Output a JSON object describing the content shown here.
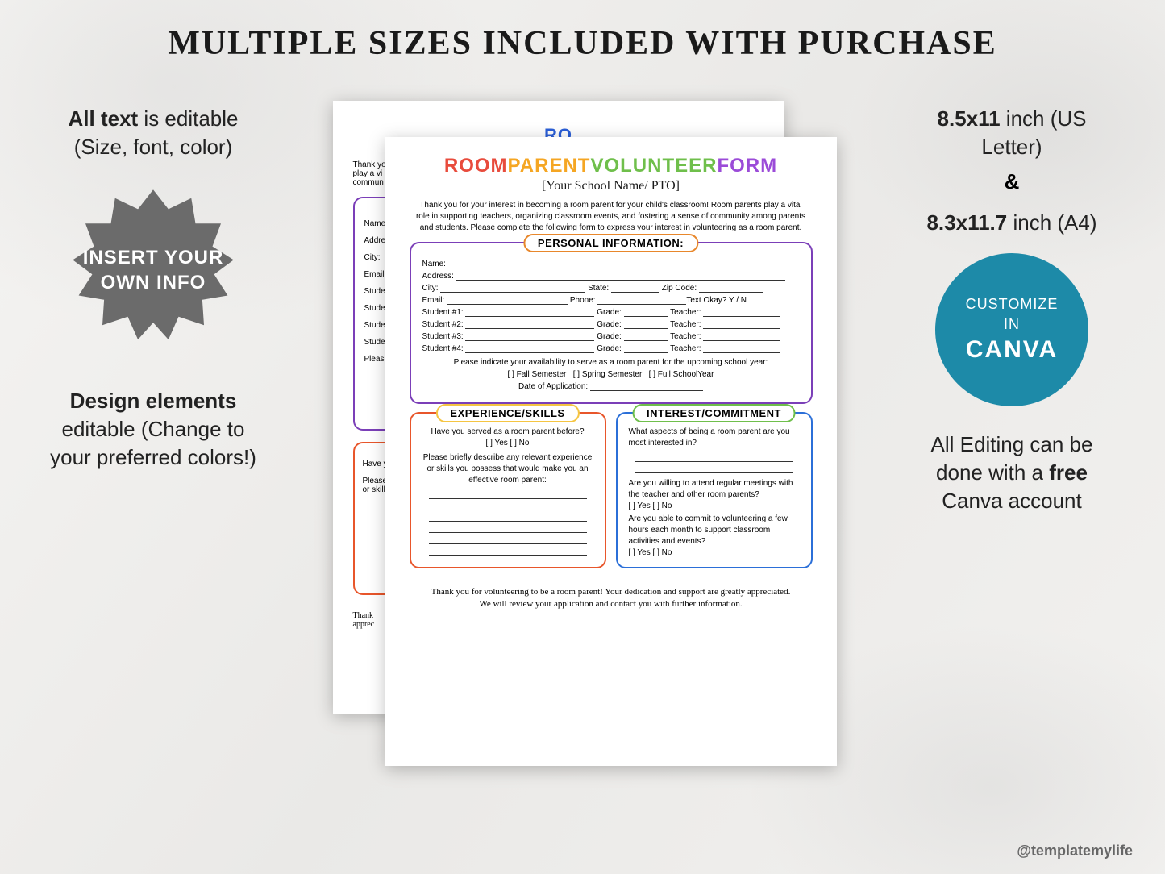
{
  "title": "MULTIPLE SIZES INCLUDED WITH PURCHASE",
  "left": {
    "feature1_b": "All text",
    "feature1_rest": " is editable (Size, font, color)",
    "burst_l1": "INSERT YOUR",
    "burst_l2": "OWN INFO",
    "feature2_b": "Design elements",
    "feature2_rest": " editable (Change to your preferred colors!)"
  },
  "right": {
    "size1_b": "8.5x11",
    "size1_rest": " inch (US Letter)",
    "amp": "&",
    "size2_b": "8.3x11.7",
    "size2_rest": " inch (A4)",
    "badge_l1": "CUSTOMIZE",
    "badge_l2": "IN",
    "badge_l3": "CANVA",
    "feature3_pre": "All Editing can be done with a ",
    "feature3_b": "free",
    "feature3_post": " Canva account"
  },
  "form": {
    "title_words": [
      "ROOM",
      "PARENT",
      "VOLUNTEER",
      "FORM"
    ],
    "title_colors": [
      "#e84b3c",
      "#f5a623",
      "#6fbf4b",
      "#9b4bd8"
    ],
    "school": "[Your School Name/ PTO]",
    "intro": "Thank you for your interest in becoming a room parent for your child's classroom! Room parents play a vital role in supporting teachers, organizing classroom events, and fostering a sense of community among parents and students. Please complete the following form to express your interest in volunteering as a room parent.",
    "personal": {
      "title": "PERSONAL INFORMATION:",
      "border": "#7b3fb8",
      "title_border": "#e8872b",
      "name": "Name:",
      "address": "Address:",
      "city": "City:",
      "state": "State:",
      "zip": "Zip Code:",
      "email": "Email:",
      "phone": "Phone:",
      "text_ok": "Text Okay?  Y / N",
      "student": "Student #",
      "grade": "Grade:",
      "teacher": "Teacher:",
      "avail": "Please indicate your availability to serve as a room parent for the upcoming school year:",
      "fall": "[   ] Fall Semester",
      "spring": "[   ] Spring Semester",
      "full": "[   ] Full SchoolYear",
      "dateapp": "Date of Application:"
    },
    "exp": {
      "title": "EXPERIENCE/SKILLS",
      "border": "#e8562b",
      "title_border": "#f5c542",
      "q1": "Have you served as a room parent before?",
      "yn": "[ ] Yes [ ] No",
      "q2": "Please briefly describe any relevant experience or skills you possess that would make you an effective room parent:"
    },
    "int": {
      "title": "INTEREST/COMMITMENT",
      "border": "#2b6fd8",
      "title_border": "#6fbf4b",
      "q1": "What aspects of being a room parent are you most interested in?",
      "q2": "Are you willing to attend regular meetings with the teacher and other room parents?",
      "yn": "[ ] Yes [ ] No",
      "q3": "Are you able to commit to volunteering a few hours each month to support classroom activities and events?"
    },
    "thanks": "Thank you for volunteering to be a room parent! Your dedication and support are greatly appreciated. We will review your application and contact you with further information."
  },
  "back": {
    "title_prefix": "RO",
    "intro_l1": "Thank you",
    "intro_l2": "play a vi",
    "intro_l3": "commun",
    "lines": [
      "Name:",
      "Address:",
      "City:",
      "Email:",
      "Student #",
      "Student #",
      "Student #",
      "Student #",
      "Please in"
    ],
    "exp_l1": "Have you",
    "exp_l2": "Please brie",
    "exp_l3": "or skills yo",
    "thanks_l1": "Thank",
    "thanks_l2": "apprec"
  },
  "watermark": "@templatemylife",
  "colors": {
    "burst_fill": "#6b6b6b",
    "circle_fill": "#1d8aa8"
  }
}
